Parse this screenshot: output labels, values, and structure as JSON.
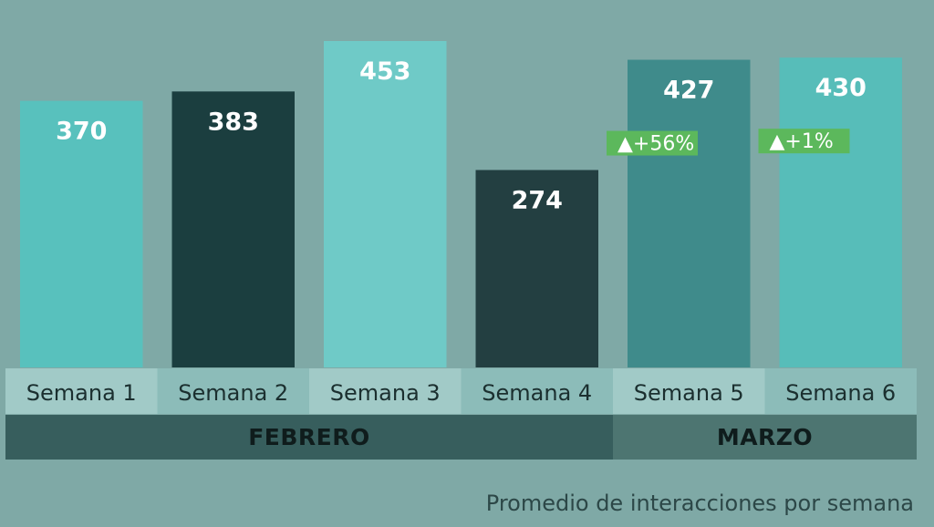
{
  "chart_data": {
    "type": "bar",
    "categories": [
      "Semana 1",
      "Semana 2",
      "Semana 3",
      "Semana 4",
      "Semana 5",
      "Semana 6"
    ],
    "values": [
      370,
      383,
      453,
      274,
      427,
      430
    ],
    "value_labels": [
      "370",
      "383",
      "453",
      "274",
      "427",
      "430"
    ],
    "groups": [
      {
        "label": "FEBRERO",
        "categories": [
          "Semana 1",
          "Semana 2",
          "Semana 3",
          "Semana 4"
        ]
      },
      {
        "label": "MARZO",
        "categories": [
          "Semana 5",
          "Semana 6"
        ]
      }
    ],
    "annotations": [
      {
        "category": "Semana 5",
        "text": "▲+56%"
      },
      {
        "category": "Semana 6",
        "text": "▲+1%"
      }
    ],
    "caption": "Promedio de interacciones por semana",
    "grid": false,
    "colors": {
      "background": "#7fa9a6",
      "bars": [
        "#58c1bd",
        "#1b3e3f",
        "#6fcac7",
        "#233f41",
        "#3f8b8b",
        "#57bdb9"
      ],
      "category_cells": [
        "#a1cac7",
        "#8cbcb9"
      ],
      "group_cells": [
        "#375e5d",
        "#4d7571"
      ],
      "badge": "#5cb85c"
    }
  }
}
